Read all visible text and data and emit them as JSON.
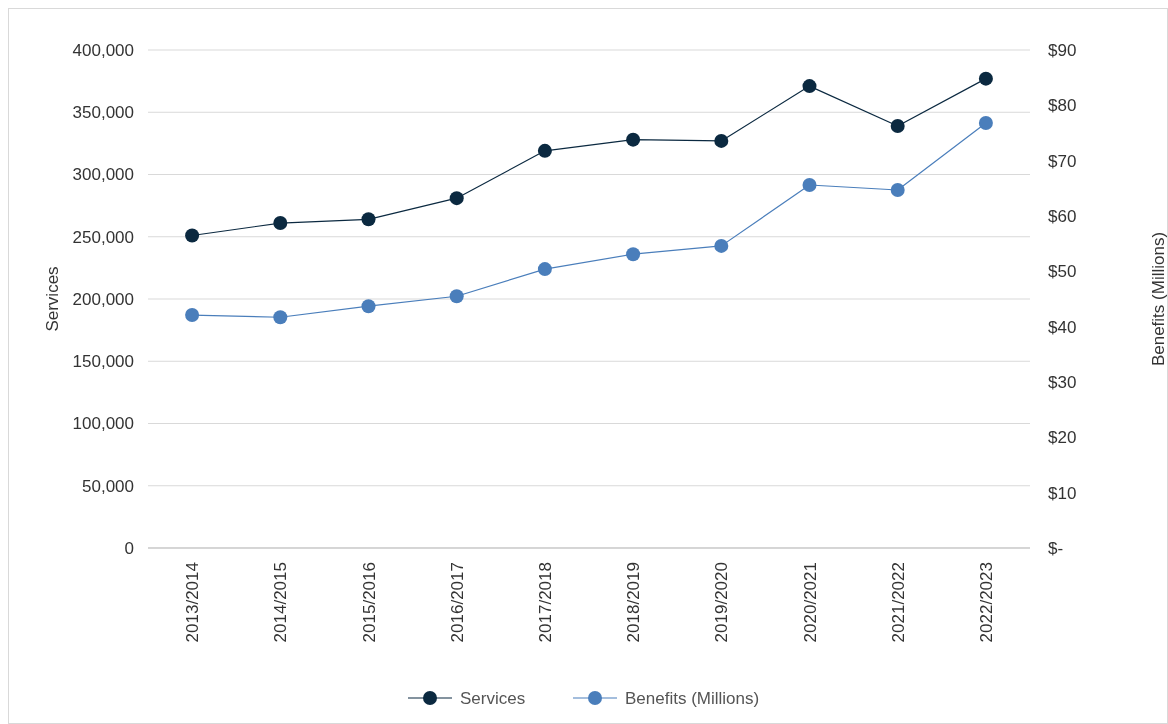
{
  "chart_data": {
    "type": "line",
    "ylabel": "Services",
    "y2label": "Benefits (Millions)",
    "categories": [
      "2013/2014",
      "2014/2015",
      "2015/2016",
      "2016/2017",
      "2017/2018",
      "2018/2019",
      "2019/2020",
      "2020/2021",
      "2021/2022",
      "2022/2023"
    ],
    "series": [
      {
        "name": "Services",
        "color": "#0b2940",
        "values": [
          251000,
          261000,
          264000,
          281000,
          319000,
          328000,
          327000,
          371000,
          339000,
          377000
        ]
      },
      {
        "name": "Benefits (Millions)",
        "color": "#4a7ebb",
        "axis": "y2",
        "values": [
          42.1,
          41.7,
          43.7,
          45.5,
          50.4,
          53.1,
          54.6,
          65.6,
          64.7,
          76.8
        ]
      }
    ],
    "ylim": [
      0,
      400000
    ],
    "yticks": [
      0,
      {
        "value": 50000,
        "label": "50,000"
      },
      {
        "value": 100000,
        "label": "100,000"
      },
      {
        "value": 150000,
        "label": "150,000"
      },
      {
        "value": 200000,
        "label": "200,000"
      },
      {
        "value": 250000,
        "label": "250,000"
      },
      {
        "value": 300000,
        "label": "300,000"
      },
      {
        "value": 350000,
        "label": "350,000"
      },
      {
        "value": 400000,
        "label": "400,000"
      }
    ],
    "y2lim": [
      0,
      90
    ],
    "y2ticks": [
      {
        "value": 0,
        "label": "$-"
      },
      {
        "value": 10,
        "label": "$10"
      },
      {
        "value": 20,
        "label": "$20"
      },
      {
        "value": 30,
        "label": "$30"
      },
      {
        "value": 40,
        "label": "$40"
      },
      {
        "value": 50,
        "label": "$50"
      },
      {
        "value": 60,
        "label": "$60"
      },
      {
        "value": 70,
        "label": "$70"
      },
      {
        "value": 80,
        "label": "$80"
      },
      {
        "value": 90,
        "label": "$90"
      }
    ],
    "grid": "y",
    "legend": "bottom",
    "marker": "circle",
    "line_style": "solid"
  }
}
